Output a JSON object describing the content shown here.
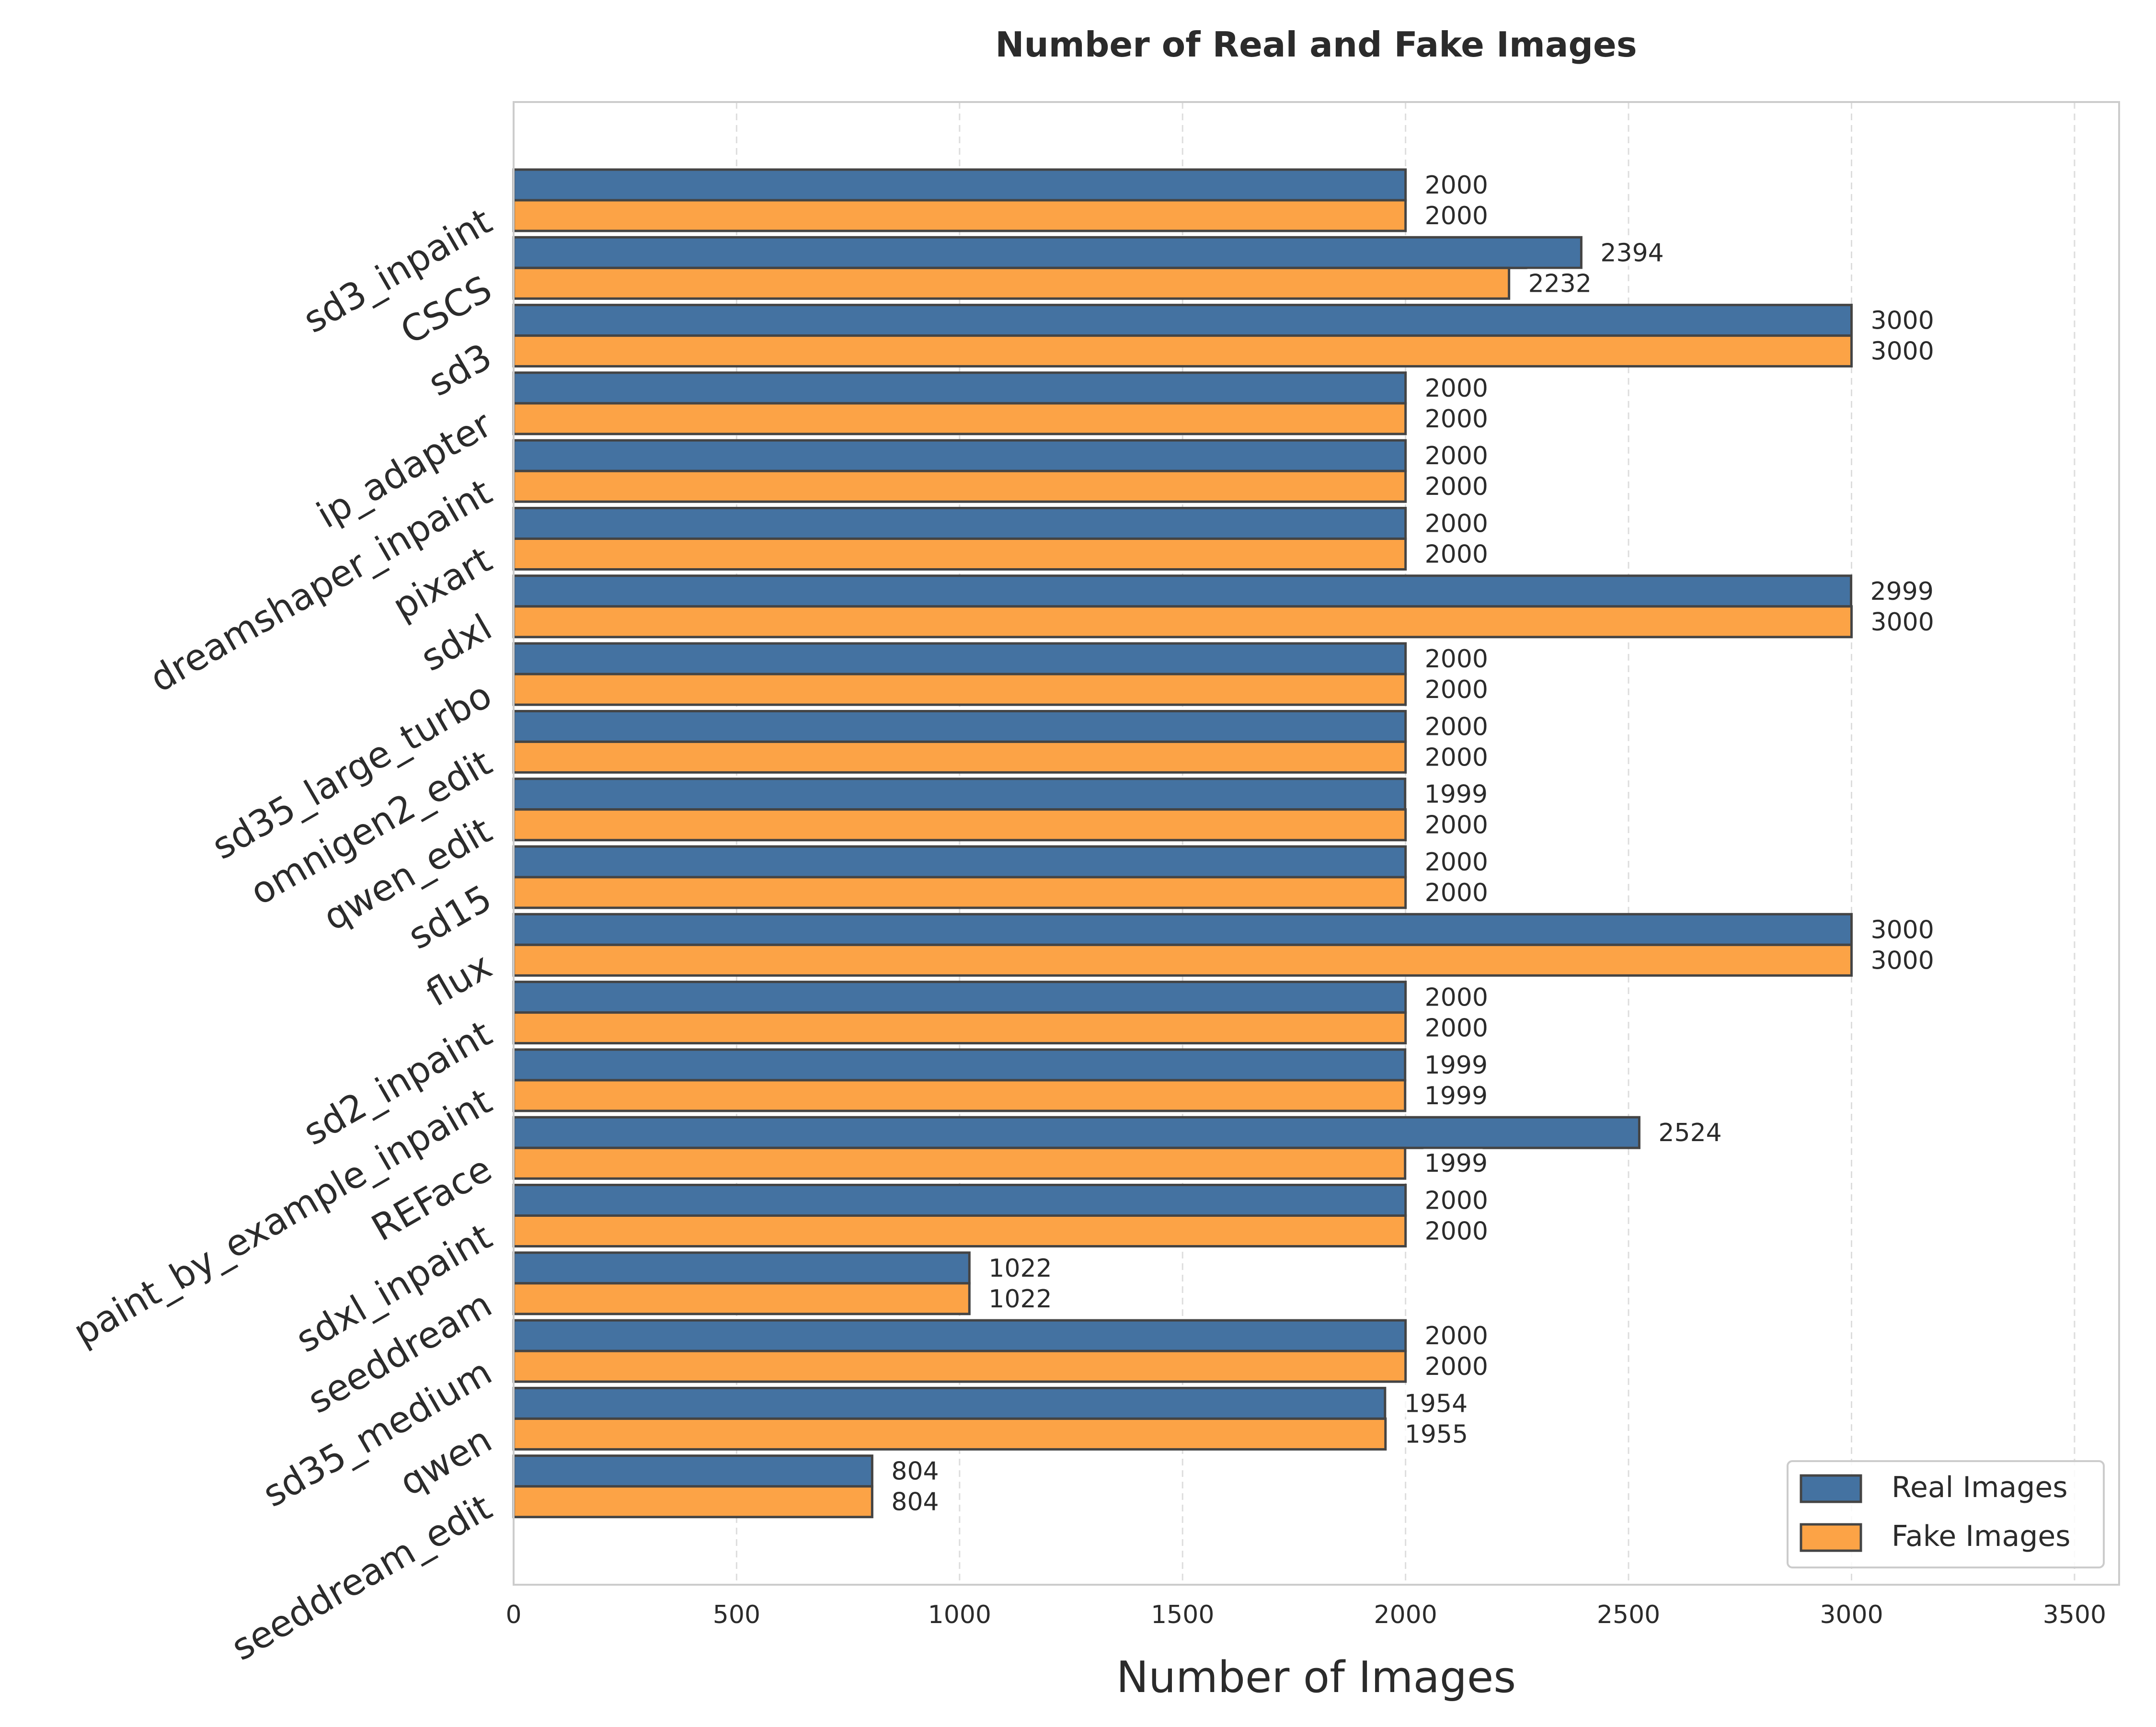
{
  "chart_data": {
    "type": "bar",
    "orientation": "horizontal",
    "title": "Number of Real and Fake Images",
    "xlabel": "Number of Images",
    "ylabel": "",
    "xlim": [
      0,
      3600
    ],
    "xticks": [
      0,
      500,
      1000,
      1500,
      2000,
      2500,
      3000,
      3500
    ],
    "grid": "x dashed",
    "legend_position": "bottom-right",
    "categories": [
      "sd3_inpaint",
      "CSCS",
      "sd3",
      "ip_adapter",
      "dreamshaper_inpaint",
      "pixart",
      "sdxl",
      "sd35_large_turbo",
      "omnigen2_edit",
      "qwen_edit",
      "sd15",
      "flux",
      "sd2_inpaint",
      "paint_by_example_inpaint",
      "REFace",
      "sdxl_inpaint",
      "seeddream",
      "sd35_medium",
      "qwen",
      "seeddream_edit"
    ],
    "series": [
      {
        "name": "Real Images",
        "color": "#4472a1",
        "values": [
          2000,
          2394,
          3000,
          2000,
          2000,
          2000,
          2999,
          2000,
          2000,
          1999,
          2000,
          3000,
          2000,
          1999,
          2524,
          2000,
          1022,
          2000,
          1954,
          804
        ]
      },
      {
        "name": "Fake Images",
        "color": "#fca346",
        "values": [
          2000,
          2232,
          3000,
          2000,
          2000,
          2000,
          3000,
          2000,
          2000,
          2000,
          2000,
          3000,
          2000,
          1999,
          1999,
          2000,
          1022,
          2000,
          1955,
          804
        ]
      }
    ]
  }
}
